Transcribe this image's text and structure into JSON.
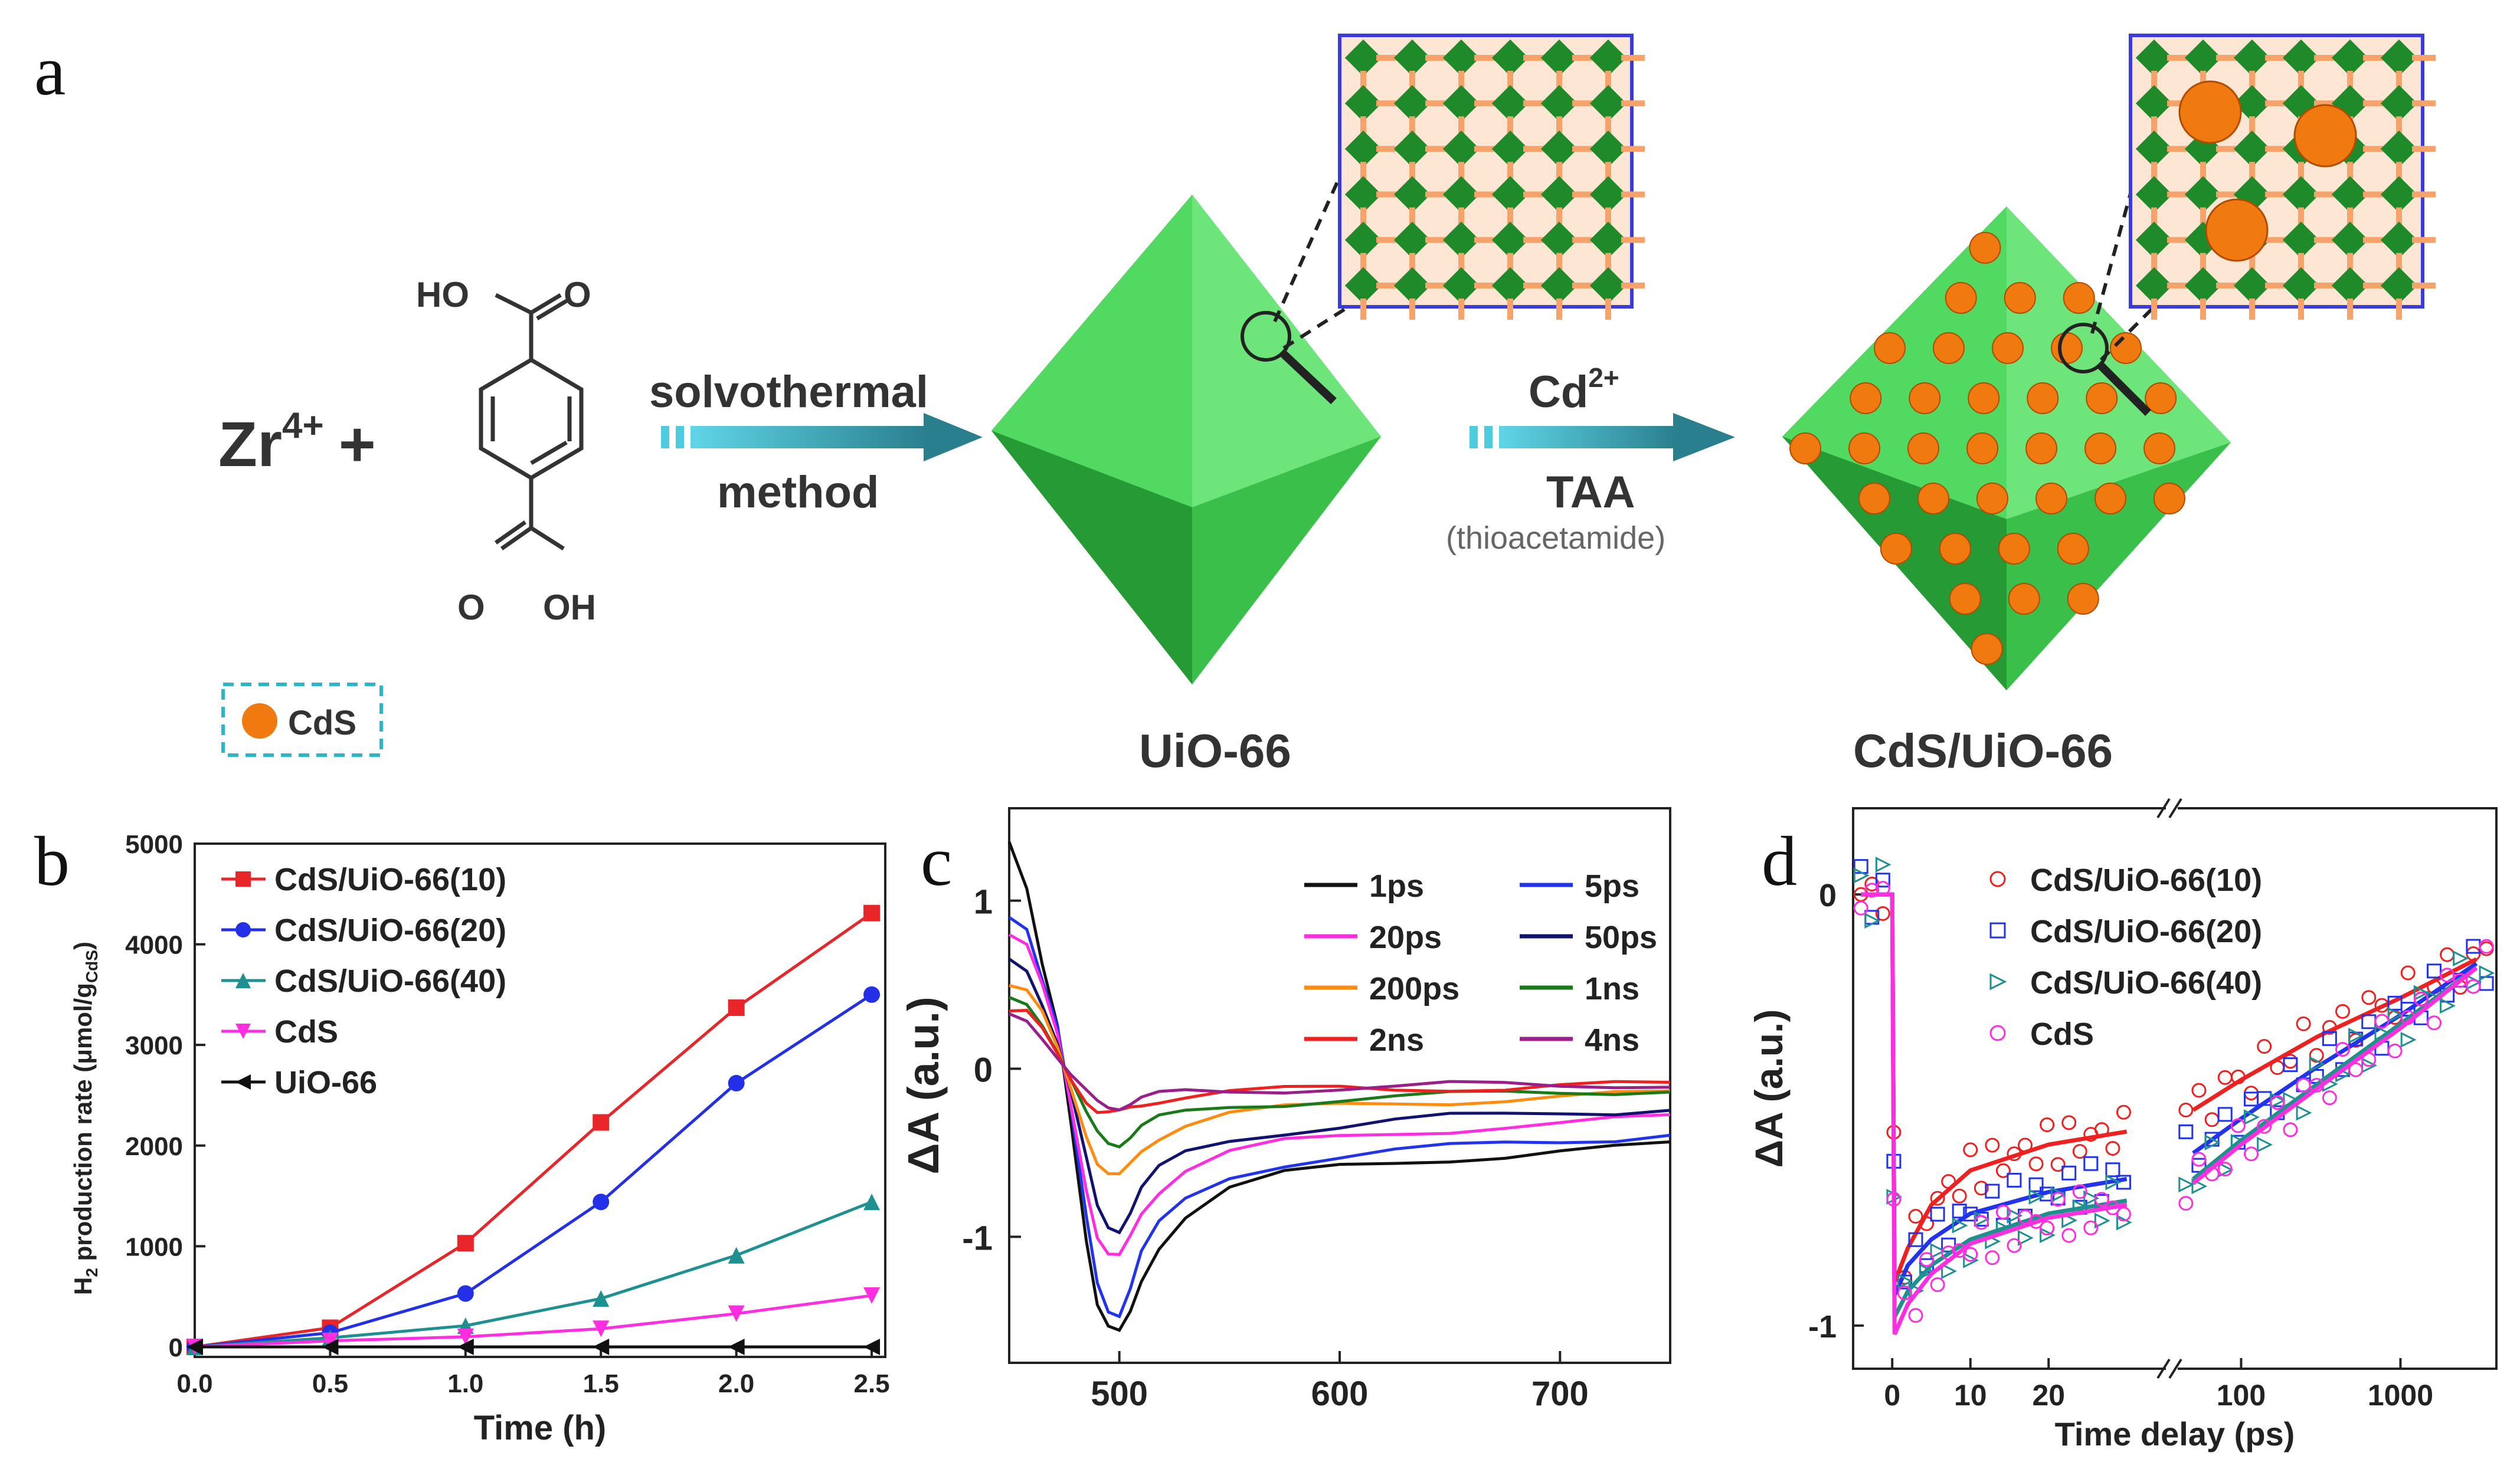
{
  "panels": {
    "a": "a",
    "b": "b",
    "c": "c",
    "d": "d"
  },
  "scheme": {
    "reactant_zr": "Zr",
    "reactant_zr_charge": "4+",
    "plus": "+",
    "cooh_top": "HO",
    "cooh_top_o": "O",
    "cooh_bottom_o": "O",
    "cooh_bottom": "OH",
    "step1_top": "solvothermal",
    "step1_bottom": "method",
    "step2_top": "Cd",
    "step2_top_charge": "2+",
    "step2_bottom": "TAA",
    "step2_note": "(thioacetamide)",
    "product1": "UiO-66",
    "product2": "CdS/UiO-66",
    "legend_cds": "CdS",
    "colors": {
      "octa": "#3ec44a",
      "octa_dark": "#1f8f2c",
      "cds": "#f07a10",
      "arrow": "#2fb5c8",
      "frame": "#3b3bdc"
    }
  },
  "chart_data": [
    {
      "panel": "b",
      "type": "line",
      "xlabel": "Time (h)",
      "ylabel_main": "H",
      "ylabel_sub": "2",
      "ylabel_rest": " production rate (μmol/g",
      "ylabel_sub2": "CdS",
      "ylabel_end": ")",
      "x": [
        0.0,
        0.5,
        1.0,
        1.5,
        2.0,
        2.5
      ],
      "xticks": [
        "0.0",
        "0.5",
        "1.0",
        "1.5",
        "2.0",
        "2.5"
      ],
      "yticks": [
        "0",
        "1000",
        "2000",
        "3000",
        "4000",
        "5000"
      ],
      "xlim": [
        0,
        2.55
      ],
      "ylim": [
        -100,
        5000
      ],
      "series": [
        {
          "name": "CdS/UiO-66(10)",
          "color": "#e8262a",
          "marker": "square",
          "values": [
            0,
            190,
            1030,
            2230,
            3370,
            4310
          ]
        },
        {
          "name": "CdS/UiO-66(20)",
          "color": "#2330e8",
          "marker": "circle",
          "values": [
            0,
            140,
            530,
            1440,
            2620,
            3500
          ]
        },
        {
          "name": "CdS/UiO-66(40)",
          "color": "#1e9090",
          "marker": "triangle-up",
          "values": [
            0,
            90,
            210,
            480,
            910,
            1440
          ]
        },
        {
          "name": "CdS",
          "color": "#ff2de0",
          "marker": "triangle-down",
          "values": [
            0,
            60,
            100,
            180,
            330,
            510
          ]
        },
        {
          "name": "UiO-66",
          "color": "#111111",
          "marker": "triangle-left",
          "values": [
            0,
            0,
            0,
            0,
            0,
            0
          ]
        }
      ]
    },
    {
      "panel": "c",
      "type": "line",
      "xlabel": "",
      "ylabel": "ΔA (a.u.)",
      "xticks": [
        "500",
        "600",
        "700"
      ],
      "yticks": [
        "1",
        "0",
        "-1"
      ],
      "xlim": [
        450,
        750
      ],
      "ylim": [
        -1.75,
        1.55
      ],
      "x": [
        450,
        458,
        465,
        472,
        478,
        485,
        490,
        495,
        500,
        505,
        510,
        518,
        530,
        550,
        575,
        600,
        625,
        650,
        675,
        700,
        725,
        750
      ],
      "series": [
        {
          "name": "1ps",
          "color": "#111111",
          "values": [
            1.35,
            1.05,
            0.6,
            0.25,
            -0.3,
            -1.0,
            -1.4,
            -1.55,
            -1.58,
            -1.45,
            -1.25,
            -1.05,
            -0.88,
            -0.72,
            -0.63,
            -0.58,
            -0.55,
            -0.53,
            -0.52,
            -0.5,
            -0.48,
            -0.45
          ]
        },
        {
          "name": "5ps",
          "color": "#2233ee",
          "values": [
            0.9,
            0.85,
            0.55,
            0.25,
            -0.25,
            -0.9,
            -1.28,
            -1.43,
            -1.45,
            -1.3,
            -1.1,
            -0.93,
            -0.78,
            -0.64,
            -0.56,
            -0.52,
            -0.49,
            -0.47,
            -0.45,
            -0.43,
            -0.41,
            -0.38
          ]
        },
        {
          "name": "20ps",
          "color": "#ff2de0",
          "values": [
            0.8,
            0.72,
            0.48,
            0.2,
            -0.2,
            -0.7,
            -1.0,
            -1.12,
            -1.13,
            -1.0,
            -0.85,
            -0.72,
            -0.6,
            -0.5,
            -0.44,
            -0.41,
            -0.38,
            -0.36,
            -0.34,
            -0.33,
            -0.31,
            -0.29
          ]
        },
        {
          "name": "50ps",
          "color": "#121270",
          "values": [
            0.65,
            0.6,
            0.4,
            0.15,
            -0.15,
            -0.55,
            -0.82,
            -0.93,
            -0.95,
            -0.85,
            -0.72,
            -0.6,
            -0.5,
            -0.42,
            -0.37,
            -0.34,
            -0.31,
            -0.29,
            -0.28,
            -0.26,
            -0.25,
            -0.23
          ]
        },
        {
          "name": "200ps",
          "color": "#ff8c10",
          "values": [
            0.5,
            0.45,
            0.32,
            0.12,
            -0.1,
            -0.38,
            -0.56,
            -0.64,
            -0.65,
            -0.57,
            -0.48,
            -0.4,
            -0.33,
            -0.27,
            -0.24,
            -0.22,
            -0.2,
            -0.19,
            -0.18,
            -0.17,
            -0.16,
            -0.15
          ]
        },
        {
          "name": "1ns",
          "color": "#1a7a1a",
          "values": [
            0.42,
            0.4,
            0.28,
            0.1,
            -0.08,
            -0.28,
            -0.38,
            -0.43,
            -0.44,
            -0.4,
            -0.35,
            -0.3,
            -0.26,
            -0.22,
            -0.2,
            -0.18,
            -0.17,
            -0.16,
            -0.15,
            -0.14,
            -0.13,
            -0.12
          ]
        },
        {
          "name": "2ns",
          "color": "#ee2020",
          "values": [
            0.35,
            0.33,
            0.22,
            0.08,
            -0.05,
            -0.18,
            -0.25,
            -0.27,
            -0.27,
            -0.24,
            -0.21,
            -0.18,
            -0.16,
            -0.14,
            -0.13,
            -0.12,
            -0.12,
            -0.11,
            -0.11,
            -0.1,
            -0.1,
            -0.1
          ]
        },
        {
          "name": "4ns",
          "color": "#9b1f8a",
          "values": [
            0.32,
            0.3,
            0.2,
            0.07,
            -0.05,
            -0.15,
            -0.2,
            -0.22,
            -0.22,
            -0.2,
            -0.18,
            -0.16,
            -0.14,
            -0.13,
            -0.12,
            -0.11,
            -0.11,
            -0.1,
            -0.1,
            -0.1,
            -0.09,
            -0.09
          ]
        }
      ]
    },
    {
      "panel": "d",
      "type": "scatter",
      "xlabel": "Time delay (ps)",
      "ylabel": "ΔA (a.u.)",
      "xticks_linear": [
        "0",
        "10",
        "20"
      ],
      "xticks_log": [
        "100",
        "1000"
      ],
      "yticks": [
        "0",
        "-1"
      ],
      "xlim_linear": [
        -5,
        35
      ],
      "xlim_log": [
        40,
        4000
      ],
      "ylim": [
        -1.1,
        0.2
      ],
      "series": [
        {
          "name": "CdS/UiO-66(10)",
          "color": "#ee2020",
          "marker": "circle",
          "fit_linear": [
            [
              0,
              0
            ],
            [
              0.3,
              -0.9
            ],
            [
              2,
              -0.82
            ],
            [
              5,
              -0.72
            ],
            [
              10,
              -0.64
            ],
            [
              20,
              -0.58
            ],
            [
              30,
              -0.55
            ]
          ],
          "fit_log": [
            [
              50,
              -0.5
            ],
            [
              100,
              -0.43
            ],
            [
              300,
              -0.33
            ],
            [
              1000,
              -0.24
            ],
            [
              3000,
              -0.15
            ]
          ]
        },
        {
          "name": "CdS/UiO-66(20)",
          "color": "#2233ee",
          "marker": "square",
          "fit_linear": [
            [
              0,
              0
            ],
            [
              0.3,
              -0.93
            ],
            [
              2,
              -0.86
            ],
            [
              5,
              -0.8
            ],
            [
              10,
              -0.74
            ],
            [
              20,
              -0.69
            ],
            [
              30,
              -0.66
            ]
          ],
          "fit_log": [
            [
              50,
              -0.6
            ],
            [
              100,
              -0.52
            ],
            [
              300,
              -0.4
            ],
            [
              1000,
              -0.28
            ],
            [
              3000,
              -0.16
            ]
          ]
        },
        {
          "name": "CdS/UiO-66(40)",
          "color": "#1e9090",
          "marker": "triangle-right",
          "fit_linear": [
            [
              0,
              0
            ],
            [
              0.3,
              -0.98
            ],
            [
              2,
              -0.92
            ],
            [
              5,
              -0.86
            ],
            [
              10,
              -0.8
            ],
            [
              20,
              -0.74
            ],
            [
              30,
              -0.71
            ]
          ],
          "fit_log": [
            [
              50,
              -0.66
            ],
            [
              100,
              -0.57
            ],
            [
              300,
              -0.44
            ],
            [
              1000,
              -0.3
            ],
            [
              3000,
              -0.17
            ]
          ]
        },
        {
          "name": "CdS",
          "color": "#ff2de0",
          "marker": "circle",
          "fit_linear": [
            [
              0,
              0
            ],
            [
              0.3,
              -1.02
            ],
            [
              2,
              -0.95
            ],
            [
              5,
              -0.88
            ],
            [
              10,
              -0.81
            ],
            [
              20,
              -0.75
            ],
            [
              30,
              -0.72
            ]
          ],
          "fit_log": [
            [
              50,
              -0.67
            ],
            [
              100,
              -0.58
            ],
            [
              300,
              -0.45
            ],
            [
              1000,
              -0.31
            ],
            [
              3000,
              -0.17
            ]
          ]
        }
      ]
    }
  ]
}
